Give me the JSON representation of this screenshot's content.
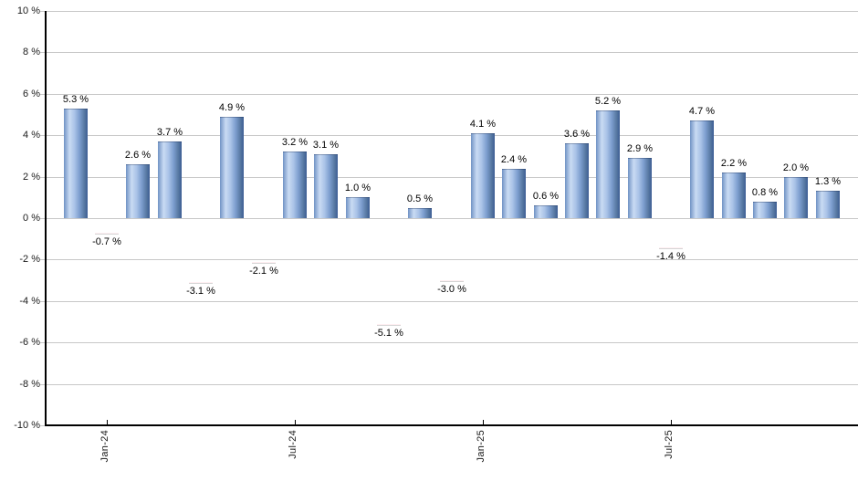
{
  "chart_data": {
    "type": "bar",
    "title": "",
    "xlabel": "",
    "ylabel": "",
    "ylim": [
      -10,
      10
    ],
    "grid": true,
    "value_label_suffix": " %",
    "values": [
      5.3,
      -0.7,
      2.6,
      3.7,
      -3.1,
      4.9,
      -2.1,
      3.2,
      3.1,
      1.0,
      -5.1,
      0.5,
      -3.0,
      4.1,
      2.4,
      0.6,
      3.6,
      5.2,
      2.9,
      -1.4,
      4.7,
      2.2,
      0.8,
      2.0,
      1.3
    ],
    "value_labels": [
      "5.3 %",
      "-0.7 %",
      "2.6 %",
      "3.7 %",
      "-3.1 %",
      "4.9 %",
      "-2.1 %",
      "3.2 %",
      "3.1 %",
      "1.0 %",
      "-5.1 %",
      "0.5 %",
      "-3.0 %",
      "4.1 %",
      "2.4 %",
      "0.6 %",
      "3.6 %",
      "5.2 %",
      "2.9 %",
      "-1.4 %",
      "4.7 %",
      "2.2 %",
      "0.8 %",
      "2.0 %",
      "1.3 %"
    ],
    "y_ticks": [
      {
        "label": "10 %",
        "value": 10
      },
      {
        "label": "8 %",
        "value": 8
      },
      {
        "label": "6 %",
        "value": 6
      },
      {
        "label": "4 %",
        "value": 4
      },
      {
        "label": "2 %",
        "value": 2
      },
      {
        "label": "0 %",
        "value": 0
      },
      {
        "label": "-2 %",
        "value": -2
      },
      {
        "label": "-4 %",
        "value": -4
      },
      {
        "label": "-6 %",
        "value": -6
      },
      {
        "label": "-8 %",
        "value": -8
      },
      {
        "label": "-10 %",
        "value": -10
      }
    ],
    "x_ticks": [
      {
        "label": "Jan-24",
        "index": 1
      },
      {
        "label": "Jul-24",
        "index": 7
      },
      {
        "label": "Jan-25",
        "index": 13
      },
      {
        "label": "Jul-25",
        "index": 19
      }
    ],
    "legend": [],
    "colors": {
      "positive_edge": "#7092c4",
      "positive_light": "#c9dbf3",
      "positive_dark": "#3c5d95",
      "negative_edge": "#c35673",
      "negative_light": "#da92a5",
      "negative_dark": "#861f41",
      "gridline": "#c8c8c8",
      "axis": "#000000",
      "text": "#000000"
    }
  }
}
